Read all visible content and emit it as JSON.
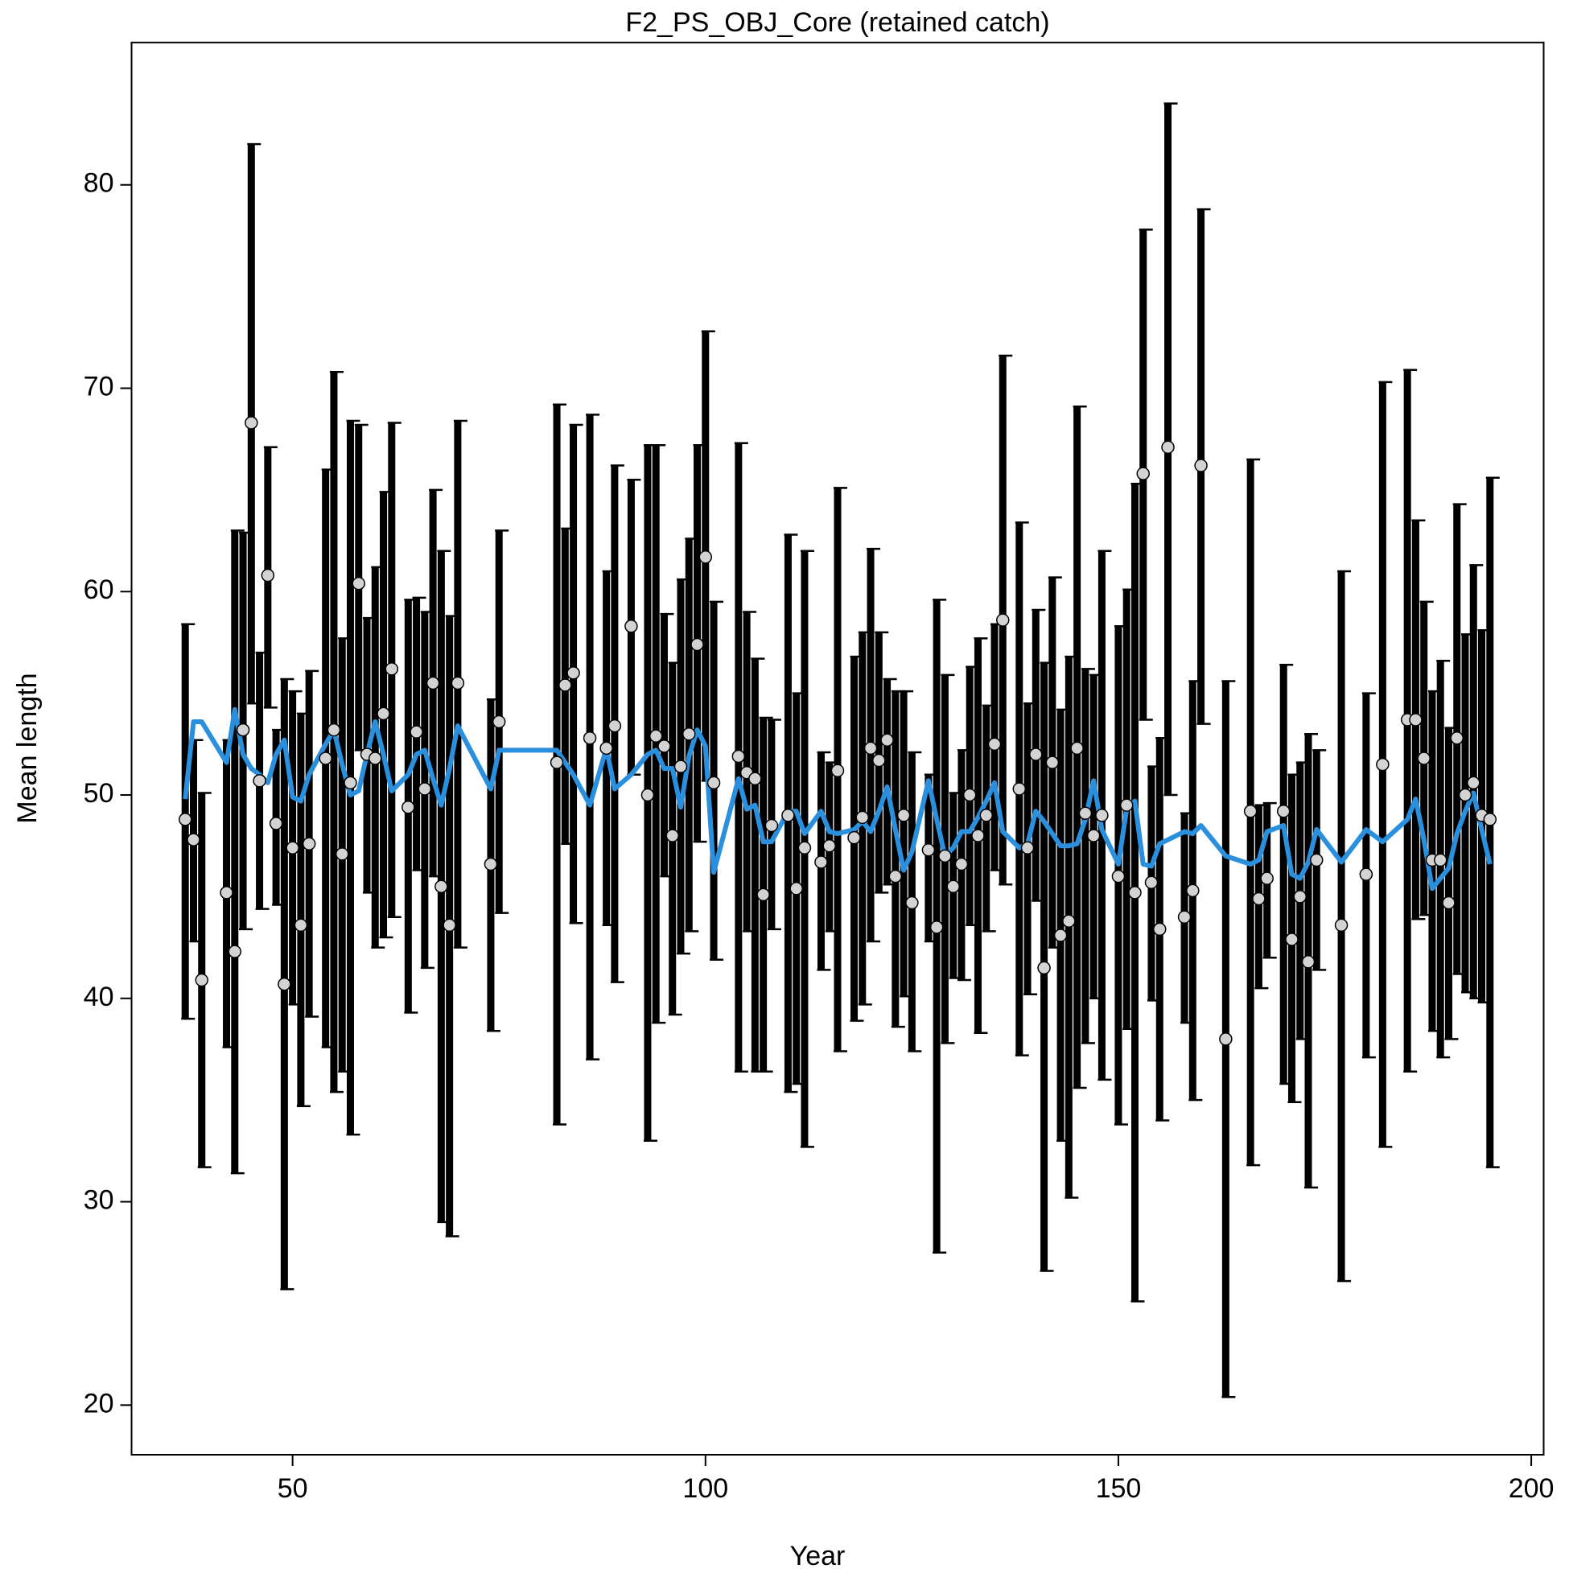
{
  "chart_data": {
    "type": "errorbar",
    "title": "F2_PS_OBJ_Core (retained catch)",
    "xlabel": "Year",
    "ylabel": "Mean length",
    "xlim": [
      30.5,
      201.5
    ],
    "xticks": [
      50,
      100,
      150,
      200
    ],
    "ylim": [
      17.56,
      87.0
    ],
    "yticks": [
      20,
      30,
      40,
      50,
      60,
      70,
      80
    ],
    "grid": false,
    "x": [
      37,
      38,
      39,
      42,
      43,
      44,
      45,
      46,
      47,
      48,
      49,
      50,
      51,
      52,
      54,
      55,
      56,
      57,
      58,
      59,
      60,
      61,
      62,
      64,
      65,
      66,
      67,
      68,
      69,
      70,
      74,
      75,
      82,
      83,
      84,
      86,
      88,
      89,
      91,
      93,
      94,
      95,
      96,
      97,
      98,
      99,
      100,
      101,
      104,
      105,
      106,
      107,
      108,
      110,
      111,
      112,
      114,
      115,
      116,
      118,
      119,
      120,
      121,
      122,
      123,
      124,
      125,
      127,
      128,
      129,
      130,
      131,
      132,
      133,
      134,
      135,
      136,
      138,
      139,
      140,
      141,
      142,
      143,
      144,
      145,
      146,
      147,
      148,
      150,
      151,
      152,
      153,
      154,
      155,
      156,
      158,
      159,
      160,
      163,
      166,
      167,
      168,
      170,
      171,
      172,
      173,
      174,
      177,
      180,
      182,
      185,
      186,
      187,
      188,
      189,
      190,
      191,
      192,
      193,
      194,
      195
    ],
    "observed": {
      "color": "#d3d3d3",
      "bar_color": "#000000",
      "values": [
        48.8,
        47.8,
        40.9,
        45.2,
        42.3,
        53.2,
        68.3,
        50.7,
        60.8,
        48.6,
        40.7,
        47.4,
        43.6,
        47.6,
        51.8,
        53.2,
        47.1,
        50.6,
        60.4,
        52,
        51.8,
        54,
        56.2,
        49.4,
        53.1,
        50.3,
        55.5,
        45.5,
        43.6,
        55.5,
        46.6,
        53.6,
        51.6,
        55.4,
        56,
        52.8,
        52.3,
        53.4,
        58.3,
        50,
        52.9,
        52.4,
        48,
        51.4,
        53,
        57.4,
        61.7,
        50.6,
        51.9,
        51.1,
        50.8,
        45.1,
        48.5,
        49,
        45.4,
        47.4,
        46.7,
        47.5,
        51.2,
        47.9,
        48.9,
        52.3,
        51.7,
        52.7,
        46,
        49,
        44.7,
        47.3,
        43.5,
        47,
        45.5,
        46.6,
        50,
        48,
        49,
        52.5,
        58.6,
        50.3,
        47.4,
        52,
        41.5,
        51.6,
        43.1,
        43.8,
        52.3,
        49.1,
        48,
        49,
        46,
        49.5,
        45.2,
        65.8,
        45.7,
        43.4,
        67.1,
        44,
        45.3,
        66.2,
        38,
        49.2,
        44.9,
        45.9,
        49.2,
        42.9,
        45,
        41.8,
        46.8,
        43.6,
        46.1,
        51.5,
        53.7,
        53.7,
        51.8,
        46.8,
        46.8,
        44.7,
        52.8,
        50,
        50.6,
        49,
        48.8
      ],
      "lower": [
        39,
        42.8,
        31.7,
        37.6,
        31.4,
        43.4,
        54.5,
        44.4,
        54.3,
        44.6,
        25.7,
        39.7,
        34.7,
        39.1,
        37.6,
        35.4,
        36.4,
        33.3,
        52.2,
        45.2,
        42.5,
        43,
        44,
        39.3,
        46.3,
        41.5,
        46,
        29,
        28.3,
        42.5,
        38.4,
        44.2,
        33.8,
        47.6,
        43.7,
        37,
        43.6,
        40.8,
        51,
        33,
        38.8,
        46,
        39.2,
        42.2,
        43.3,
        47.7,
        50.7,
        41.9,
        36.4,
        43.3,
        36.4,
        36.4,
        43.4,
        35.4,
        35.8,
        32.7,
        41.4,
        43.3,
        37.4,
        38.9,
        39.7,
        42.8,
        45.2,
        45.6,
        38.6,
        40.1,
        37.4,
        42.8,
        27.5,
        37.8,
        41,
        40.9,
        43.6,
        38.3,
        43.3,
        46.3,
        45.6,
        37.2,
        40.2,
        44.8,
        26.6,
        42.5,
        33,
        30.2,
        35.6,
        37.8,
        40,
        36,
        33.8,
        38.5,
        25.1,
        53.7,
        39.9,
        34,
        50,
        38.8,
        35,
        53.5,
        20.4,
        31.8,
        40.5,
        42,
        35.8,
        34.9,
        38,
        30.7,
        41.4,
        26.1,
        37.1,
        32.7,
        36.4,
        43.9,
        44.1,
        38.4,
        37.1,
        38,
        41.2,
        40.3,
        40,
        39.8,
        31.7
      ],
      "upper": [
        58.4,
        52.7,
        50.1,
        52.7,
        63,
        62.9,
        82,
        57,
        67.1,
        53.2,
        55.7,
        55.1,
        54,
        56.1,
        66,
        70.8,
        57.7,
        68.4,
        68.2,
        58.7,
        61.2,
        64.9,
        68.3,
        59.6,
        59.7,
        59,
        65,
        62,
        58.8,
        68.4,
        54.7,
        63,
        69.2,
        63.1,
        68.2,
        68.7,
        61,
        66.2,
        65.5,
        67.2,
        67.2,
        58.9,
        56.5,
        60.6,
        62.6,
        67.2,
        72.8,
        59.5,
        67.3,
        59,
        56.7,
        53.8,
        53.7,
        62.8,
        55,
        62,
        52.1,
        51.6,
        65.1,
        56.8,
        58,
        62.1,
        58,
        55.7,
        55.1,
        55.1,
        52.1,
        51,
        59.6,
        55.9,
        50.1,
        52.2,
        56.3,
        57.7,
        54.4,
        58.4,
        71.6,
        63.4,
        54.5,
        59.1,
        56.5,
        60.7,
        54.2,
        56.8,
        69.1,
        56.2,
        55.9,
        62,
        58.3,
        60.1,
        65.3,
        77.8,
        51.4,
        52.8,
        84,
        49.1,
        55.6,
        78.8,
        55.6,
        66.5,
        49.5,
        49.6,
        56.4,
        51,
        51.6,
        53,
        52.2,
        61,
        55,
        70.3,
        70.9,
        63.5,
        59.5,
        55.1,
        56.6,
        53.3,
        64.3,
        57.9,
        61.3,
        58.1,
        65.6
      ]
    },
    "expected": {
      "color": "#2a8fdd",
      "values": [
        49.8,
        53.6,
        53.6,
        51.6,
        54.2,
        52,
        51.3,
        51,
        50.6,
        52,
        52.7,
        49.9,
        49.7,
        51,
        52.5,
        53.2,
        51.5,
        50,
        50.2,
        52,
        53.6,
        52,
        50.2,
        51,
        52,
        52.2,
        50.8,
        49.5,
        51.3,
        53.4,
        50.3,
        52.2,
        52.2,
        51.6,
        51,
        49.5,
        52.3,
        50.3,
        51,
        52,
        52.2,
        51.3,
        51.3,
        49.4,
        51.9,
        53.2,
        52.4,
        46.2,
        50.8,
        49.3,
        49.5,
        47.7,
        47.7,
        49.2,
        49.2,
        48.1,
        49.2,
        48.2,
        48.1,
        48.3,
        48.7,
        48.2,
        49.2,
        50.4,
        48.3,
        46.3,
        47.2,
        50.7,
        48.8,
        47,
        47.4,
        48.2,
        48.2,
        48.9,
        49.7,
        50.6,
        48.2,
        47.4,
        47.6,
        49.2,
        48.7,
        48.1,
        47.5,
        47.5,
        47.6,
        48.8,
        50.7,
        48.3,
        46.6,
        49.3,
        49.7,
        46.6,
        46.5,
        47.6,
        47.8,
        48.2,
        48.1,
        48.5,
        47,
        46.6,
        46.8,
        48.2,
        48.5,
        46.1,
        45.9,
        46.7,
        48.3,
        46.7,
        48.3,
        47.7,
        48.8,
        49.8,
        47.8,
        45.4,
        45.9,
        46.4,
        48.1,
        49.2,
        50.1,
        48.3,
        46.6
      ]
    }
  }
}
